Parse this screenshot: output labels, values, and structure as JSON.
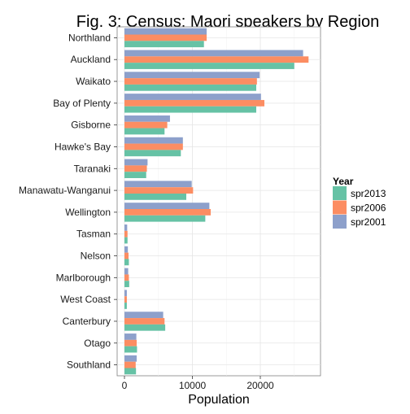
{
  "chart_data": {
    "type": "bar",
    "orientation": "horizontal",
    "title": "Fig. 3: Census: Maori speakers by Region",
    "xlabel": "Population",
    "ylabel": "",
    "xlim": [
      0,
      29000
    ],
    "xticks": [
      0,
      10000,
      20000
    ],
    "xtick_labels": [
      "0",
      "10000",
      "20000"
    ],
    "grid": true,
    "legend_position": "right",
    "legend_title": "Year",
    "categories": [
      "Northland",
      "Auckland",
      "Waikato",
      "Bay of Plenty",
      "Gisborne",
      "Hawke's Bay",
      "Taranaki",
      "Manawatu-Wanganui",
      "Wellington",
      "Tasman",
      "Nelson",
      "Marlborough",
      "West Coast",
      "Canterbury",
      "Otago",
      "Southland"
    ],
    "series": [
      {
        "name": "spr2013",
        "color": "#66C2A5",
        "values": [
          11700,
          25000,
          19400,
          19400,
          5900,
          8300,
          3200,
          9100,
          11900,
          450,
          650,
          700,
          350,
          6000,
          1850,
          1700
        ]
      },
      {
        "name": "spr2006",
        "color": "#FC8D62",
        "values": [
          12100,
          27100,
          19500,
          20600,
          6300,
          8600,
          3300,
          10100,
          12700,
          450,
          600,
          650,
          350,
          5900,
          1800,
          1650
        ]
      },
      {
        "name": "spr2001",
        "color": "#8DA0CB",
        "values": [
          12100,
          26300,
          19900,
          20100,
          6700,
          8600,
          3400,
          9900,
          12500,
          400,
          500,
          550,
          350,
          5700,
          1750,
          1800
        ]
      }
    ]
  }
}
